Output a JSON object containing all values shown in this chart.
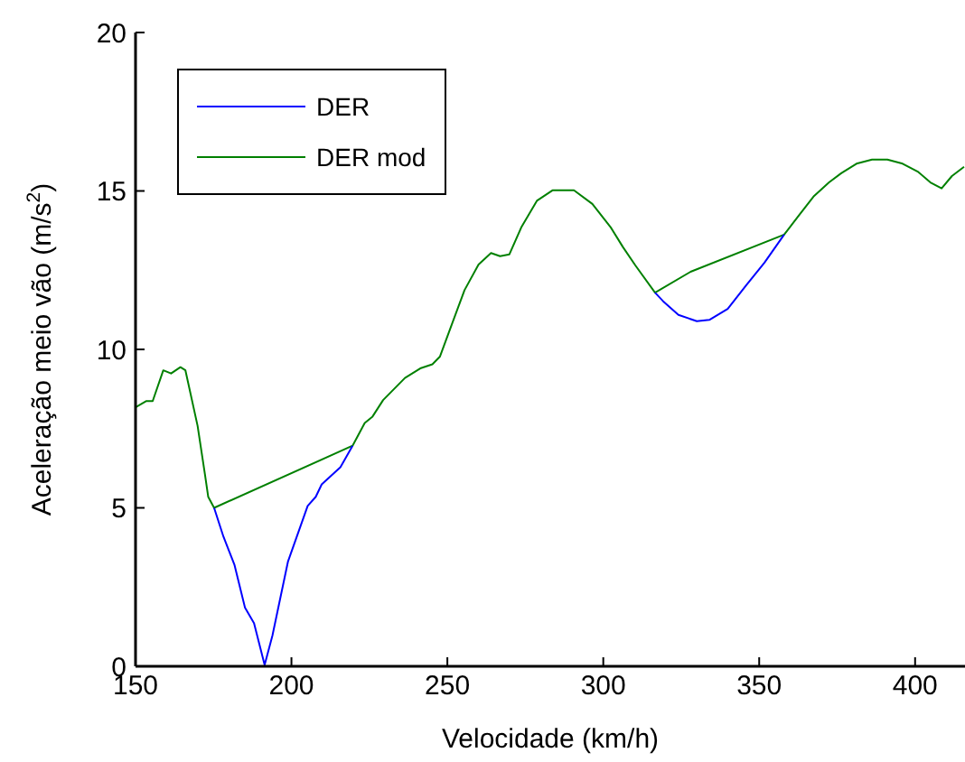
{
  "chart_data": {
    "type": "line",
    "xlabel": "Velocidade (km/h)",
    "ylabel": "Aceleração meio vão (m/s$^{2}$)",
    "xlim": [
      150,
      416
    ],
    "xticks": [
      150,
      200,
      250,
      300,
      350,
      400
    ],
    "ylim": [
      0,
      20
    ],
    "yticks": [
      0,
      5,
      10,
      15,
      20
    ],
    "grid": false,
    "legend": "top left",
    "marker": "none",
    "line_style": "solid",
    "series": [
      {
        "name": "DER",
        "color": "#0000ff",
        "x": [
          175.2,
          178.2,
          181.7,
          185.1,
          188,
          191.4,
          193.9,
          198.9,
          205.2,
          207.8,
          209.7,
          215.7,
          219.6,
          270,
          316.6,
          319.2,
          324.1,
          330,
          334,
          339.9,
          345.8,
          351.7,
          358
        ],
        "values": [
          5.0,
          4.09,
          3.21,
          1.85,
          1.36,
          0.04,
          0.97,
          3.31,
          5.06,
          5.35,
          5.74,
          6.28,
          6.96,
          null,
          11.79,
          11.52,
          11.09,
          10.89,
          10.93,
          11.28,
          12.02,
          12.74,
          13.62
        ]
      },
      {
        "name": "DER mod",
        "color": "#008000",
        "x": [
          150,
          153.5,
          155.5,
          158.9,
          161.4,
          164.4,
          166,
          169.9,
          172.3,
          173.3,
          175.2,
          219.6,
          223.5,
          226,
          229.4,
          236.4,
          241.3,
          245.2,
          247.6,
          251.1,
          255.5,
          260,
          264,
          266.9,
          269.9,
          273.8,
          278.7,
          283.7,
          290.6,
          296.5,
          302.4,
          306.3,
          310.3,
          316.6,
          328,
          358,
          362.5,
          367.4,
          372.4,
          376.3,
          381.2,
          386.2,
          391.1,
          396,
          401,
          404.9,
          408.5,
          411.8,
          415.7
        ],
        "values": [
          8.17,
          8.37,
          8.37,
          9.34,
          9.24,
          9.44,
          9.34,
          7.59,
          6.03,
          5.35,
          5.0,
          6.96,
          7.68,
          7.88,
          8.4,
          9.1,
          9.4,
          9.53,
          9.77,
          10.7,
          11.87,
          12.68,
          13.04,
          12.94,
          13.0,
          13.87,
          14.69,
          15.02,
          15.02,
          14.59,
          13.85,
          13.23,
          12.65,
          11.79,
          12.45,
          13.62,
          14.2,
          14.82,
          15.27,
          15.56,
          15.86,
          15.99,
          15.99,
          15.86,
          15.6,
          15.27,
          15.08,
          15.47,
          15.76
        ]
      }
    ]
  }
}
